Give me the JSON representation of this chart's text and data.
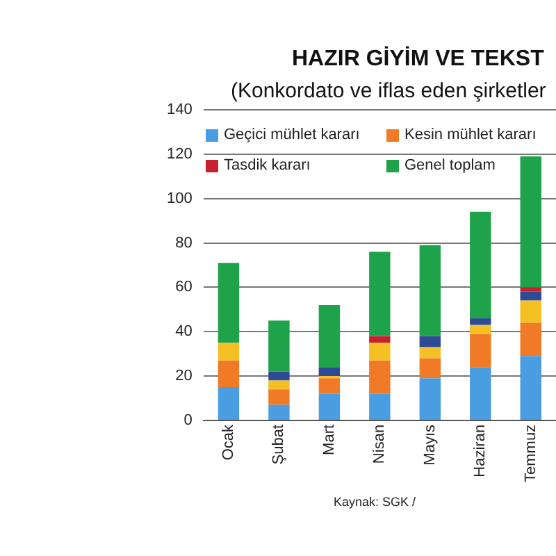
{
  "chart_data": {
    "type": "bar",
    "title": "HAZIR GİYİM VE TEKST",
    "subtitle": "(Konkordato ve iflas eden şirketler",
    "annotations": [
      "Kaynak: SGK /"
    ],
    "categories": [
      "Ocak",
      "Şubat",
      "Mart",
      "Nisan",
      "Mayıs",
      "Haziran",
      "Temmuz"
    ],
    "stacked": true,
    "series": [
      {
        "name": "Geçici mühlet kararı",
        "color": "#4a9de0",
        "values": [
          15,
          7,
          12,
          12,
          19,
          24,
          29
        ]
      },
      {
        "name": "Kesin mühlet kararı",
        "color": "#f07a25",
        "values": [
          12,
          7,
          7,
          15,
          9,
          15,
          15
        ]
      },
      {
        "color": "#f5c023",
        "values": [
          8,
          4,
          1,
          8,
          5,
          4,
          10
        ]
      },
      {
        "color": "#2f4a94",
        "values": [
          null,
          4,
          4,
          null,
          5,
          3,
          4
        ]
      },
      {
        "name": "Tasdik kararı",
        "color": "#c8202f",
        "values": [
          null,
          null,
          null,
          3,
          null,
          null,
          2
        ]
      },
      {
        "name": "Genel toplam",
        "color": "#1fa34a",
        "values": [
          36,
          23,
          28,
          38,
          41,
          48,
          59
        ]
      }
    ],
    "ylim": [
      0,
      140
    ],
    "yticks": [
      0,
      20,
      40,
      60,
      80,
      100,
      120,
      140
    ],
    "grid": "y",
    "legend": "top left"
  }
}
